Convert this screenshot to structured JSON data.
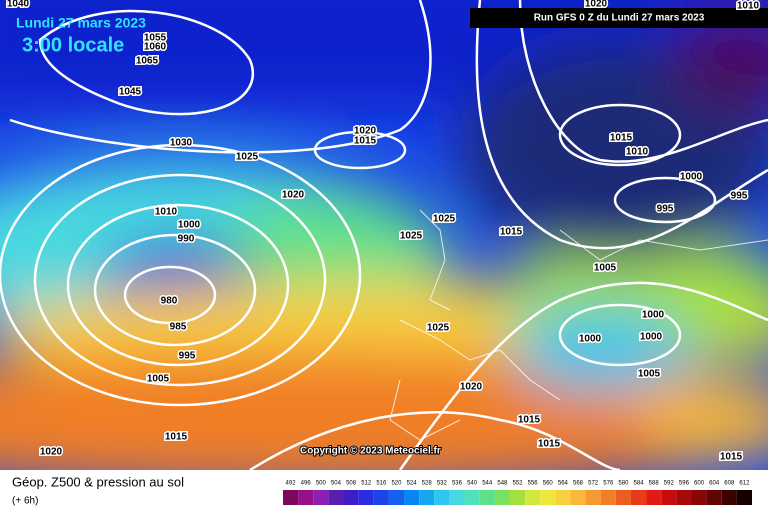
{
  "header": {
    "title": "Lundi 27 mars 2023",
    "time": "3:00 locale",
    "run": "Run GFS 0 Z du Lundi 27 mars 2023"
  },
  "map": {
    "copyright": "Copyright © 2023 Meteociel.fr",
    "isobar_labels": [
      1040,
      1055,
      1060,
      1065,
      1045,
      1030,
      1025,
      1020,
      1015,
      1020,
      1010,
      1000,
      990,
      980,
      985,
      995,
      1005,
      1015,
      1020,
      1025,
      1025,
      1015,
      1025,
      1020,
      1015,
      1015,
      1020,
      1010,
      1015,
      1010,
      1000,
      995,
      995,
      1005,
      1000,
      1000,
      1000,
      1005,
      1015
    ]
  },
  "footer": {
    "title": "Géop. Z500 & pression au sol",
    "lead": "(+ 6h)"
  },
  "scale": {
    "labels": [
      492,
      496,
      500,
      504,
      508,
      512,
      516,
      520,
      524,
      528,
      532,
      536,
      540,
      544,
      548,
      552,
      556,
      560,
      564,
      568,
      572,
      576,
      580,
      584,
      588,
      592,
      596,
      600,
      604,
      608,
      612
    ],
    "colors": [
      "#7a0a5e",
      "#96108c",
      "#8a20b4",
      "#5a1fb0",
      "#3c1ec8",
      "#2a2ee0",
      "#1a46e8",
      "#1262f0",
      "#0a86f2",
      "#14a8f0",
      "#2ec6ee",
      "#4ad8e0",
      "#52e0b8",
      "#5ee08a",
      "#7ae060",
      "#a6e040",
      "#d2e83a",
      "#f0e640",
      "#f8d040",
      "#f8b838",
      "#f49a30",
      "#f07e28",
      "#ec5e20",
      "#e83c18",
      "#e01c10",
      "#c80c0c",
      "#a80808",
      "#880606",
      "#600404",
      "#3a0202",
      "#180000"
    ]
  }
}
